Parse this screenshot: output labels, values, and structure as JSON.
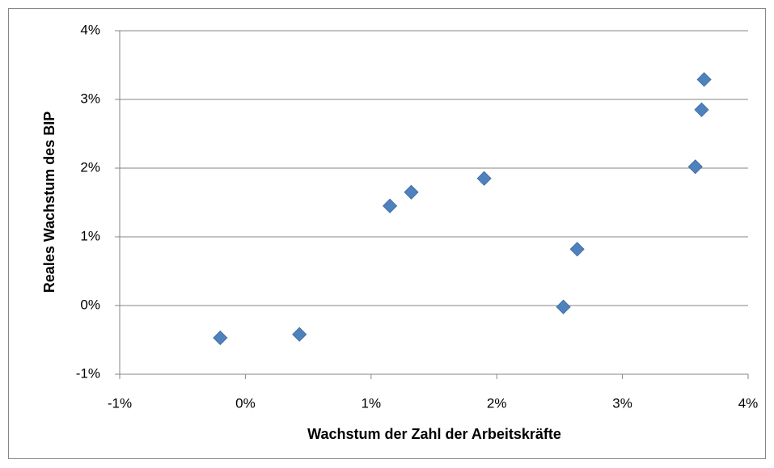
{
  "chart_data": {
    "type": "scatter",
    "x_label": "Wachstum der Zahl der Arbeitskräfte",
    "y_label": "Reales Wachstum des BIP",
    "color": "#4f81bd",
    "x": [
      -0.2,
      0.43,
      1.15,
      1.32,
      1.9,
      2.53,
      2.64,
      3.58,
      3.63,
      3.65
    ],
    "values": [
      -0.47,
      -0.42,
      1.45,
      1.65,
      1.85,
      -0.02,
      0.82,
      2.02,
      2.85,
      3.29
    ],
    "xlim": [
      -1,
      4
    ],
    "ylim": [
      -1,
      4
    ],
    "xticks": [
      {
        "value": -1,
        "label": "-1%"
      },
      {
        "value": 0,
        "label": "0%"
      },
      {
        "value": 1,
        "label": "1%"
      },
      {
        "value": 2,
        "label": "2%"
      },
      {
        "value": 3,
        "label": "3%"
      },
      {
        "value": 4,
        "label": "4%"
      }
    ],
    "yticks": [
      {
        "value": -1,
        "label": "-1%"
      },
      {
        "value": 0,
        "label": "0%"
      },
      {
        "value": 1,
        "label": "1%"
      },
      {
        "value": 2,
        "label": "2%"
      },
      {
        "value": 3,
        "label": "3%"
      },
      {
        "value": 4,
        "label": "4%"
      }
    ],
    "grid": true
  }
}
